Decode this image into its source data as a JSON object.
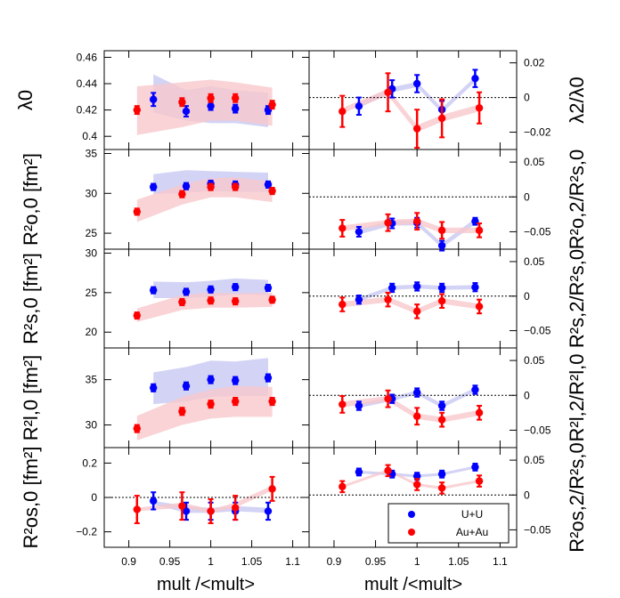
{
  "chart_data": {
    "type": "scatter",
    "x_label": "mult /<mult>",
    "xlim": [
      0.87,
      1.12
    ],
    "x_ticks": [
      "0.9",
      "0.95",
      "1",
      "1.05",
      "1.1"
    ],
    "x_tick_values": [
      0.9,
      0.95,
      1.0,
      1.05,
      1.1
    ],
    "legend": {
      "placement": "bottom-right",
      "entries": [
        "U+U",
        "Au+Au"
      ]
    },
    "colors": {
      "uu": "#0000ff",
      "auau": "#ff0000",
      "uu_band": "#c8c8f2",
      "auau_band": "#f8c8cc"
    },
    "series_x": {
      "U+U": [
        0.93,
        0.97,
        1.0,
        1.03,
        1.07
      ],
      "Au+Au": [
        0.91,
        0.965,
        1.0,
        1.03,
        1.075
      ]
    },
    "left_panels": [
      {
        "id": "lambda0",
        "ylabel": "λ0",
        "ylim": [
          0.39,
          0.465
        ],
        "y_ticks": [
          0.4,
          0.42,
          0.44,
          0.46
        ],
        "y_tick_labels": [
          "0.4",
          "0.42",
          "0.44",
          "0.46"
        ],
        "uu": [
          0.428,
          0.419,
          0.423,
          0.421,
          0.42
        ],
        "auau": [
          0.42,
          0.426,
          0.429,
          0.429,
          0.424
        ],
        "uu_band": [
          [
            0.93,
            0.418,
            0.447
          ],
          [
            0.97,
            0.412,
            0.435
          ],
          [
            1.0,
            0.41,
            0.438
          ],
          [
            1.03,
            0.41,
            0.435
          ],
          [
            1.07,
            0.407,
            0.433
          ]
        ],
        "auau_band": [
          [
            0.91,
            0.401,
            0.438
          ],
          [
            0.965,
            0.407,
            0.441
          ],
          [
            1.0,
            0.412,
            0.443
          ],
          [
            1.03,
            0.412,
            0.441
          ],
          [
            1.075,
            0.408,
            0.437
          ]
        ],
        "uu_err": [
          0.005,
          0.004,
          0.003,
          0.003,
          0.003
        ],
        "auau_err": [
          0.003,
          0.003,
          0.003,
          0.003,
          0.003
        ],
        "ref_line": null
      },
      {
        "id": "Ro",
        "ylabel": "R²o,0 [fm²]",
        "ylim": [
          23,
          35.5
        ],
        "y_ticks": [
          25,
          30,
          35
        ],
        "y_tick_labels": [
          "25",
          "30",
          "35"
        ],
        "uu": [
          30.8,
          30.9,
          31.2,
          31.1,
          31.1
        ],
        "auau": [
          27.7,
          29.9,
          30.8,
          30.8,
          30.3
        ],
        "uu_band": [
          [
            0.93,
            29.9,
            32.4
          ],
          [
            0.97,
            30.1,
            32.9
          ],
          [
            1.0,
            30.3,
            32.8
          ],
          [
            1.03,
            30.2,
            32.7
          ],
          [
            1.07,
            30.2,
            32.6
          ]
        ],
        "auau_band": [
          [
            0.91,
            26.4,
            29.2
          ],
          [
            0.965,
            28.6,
            31.1
          ],
          [
            1.0,
            29.5,
            31.9
          ],
          [
            1.03,
            29.5,
            32.0
          ],
          [
            1.075,
            28.9,
            31.5
          ]
        ],
        "uu_err": [
          0.4,
          0.4,
          0.4,
          0.4,
          0.4
        ],
        "auau_err": [
          0.4,
          0.4,
          0.4,
          0.4,
          0.4
        ],
        "ref_line": null
      },
      {
        "id": "Rs",
        "ylabel": "R²s,0 [fm²]",
        "ylim": [
          18,
          30.5
        ],
        "y_ticks": [
          20,
          25,
          30
        ],
        "y_tick_labels": [
          "20",
          "25",
          "30"
        ],
        "uu": [
          25.3,
          25.1,
          25.4,
          25.7,
          25.6
        ],
        "auau": [
          22.1,
          23.8,
          24.0,
          23.9,
          24.1
        ],
        "uu_band": [
          [
            0.93,
            24.3,
            26.4
          ],
          [
            0.97,
            24.3,
            26.3
          ],
          [
            1.0,
            24.5,
            26.5
          ],
          [
            1.03,
            24.8,
            26.8
          ],
          [
            1.07,
            24.7,
            26.6
          ]
        ],
        "auau_band": [
          [
            0.91,
            21.3,
            23.0
          ],
          [
            0.965,
            22.8,
            24.7
          ],
          [
            1.0,
            23.1,
            25.0
          ],
          [
            1.03,
            23.1,
            24.9
          ],
          [
            1.075,
            23.2,
            25.0
          ]
        ],
        "uu_err": [
          0.4,
          0.4,
          0.4,
          0.4,
          0.4
        ],
        "auau_err": [
          0.4,
          0.4,
          0.4,
          0.4,
          0.4
        ],
        "ref_line": null
      },
      {
        "id": "Rl",
        "ylabel": "R²l,0 [fm²]",
        "ylim": [
          27.5,
          38.5
        ],
        "y_ticks": [
          30,
          35
        ],
        "y_tick_labels": [
          "30",
          "35"
        ],
        "uu": [
          34.1,
          34.3,
          35.0,
          34.9,
          35.2
        ],
        "auau": [
          29.6,
          31.5,
          32.3,
          32.6,
          32.6
        ],
        "uu_band": [
          [
            0.93,
            32.3,
            35.8
          ],
          [
            0.97,
            32.6,
            36.4
          ],
          [
            1.0,
            33.1,
            37.1
          ],
          [
            1.03,
            33.2,
            37.0
          ],
          [
            1.07,
            33.2,
            37.4
          ]
        ],
        "auau_band": [
          [
            0.91,
            28.3,
            31.0
          ],
          [
            0.965,
            30.0,
            33.1
          ],
          [
            1.0,
            30.7,
            33.9
          ],
          [
            1.03,
            30.9,
            34.3
          ],
          [
            1.075,
            30.9,
            34.2
          ]
        ],
        "uu_err": [
          0.4,
          0.4,
          0.4,
          0.4,
          0.4
        ],
        "auau_err": [
          0.4,
          0.4,
          0.4,
          0.4,
          0.4
        ],
        "ref_line": null
      },
      {
        "id": "Ros",
        "ylabel": "R²os,0 [fm²]",
        "ylim": [
          -0.29,
          0.29
        ],
        "y_ticks": [
          -0.2,
          0,
          0.2
        ],
        "y_tick_labels": [
          "−0.2",
          "0",
          "0.2"
        ],
        "uu": [
          -0.02,
          -0.08,
          -0.08,
          -0.08,
          -0.08
        ],
        "auau": [
          -0.07,
          -0.05,
          -0.08,
          -0.06,
          0.05
        ],
        "uu_band": [
          [
            0.93,
            -0.04,
            -0.02
          ],
          [
            0.97,
            -0.09,
            -0.05
          ],
          [
            1.0,
            -0.09,
            -0.06
          ],
          [
            1.03,
            -0.08,
            -0.05
          ],
          [
            1.07,
            -0.09,
            -0.06
          ]
        ],
        "auau_band": [
          [
            0.91,
            -0.08,
            -0.06
          ],
          [
            0.965,
            -0.06,
            -0.03
          ],
          [
            1.0,
            -0.09,
            -0.07
          ],
          [
            1.03,
            -0.06,
            -0.03
          ],
          [
            1.075,
            0.04,
            0.07
          ]
        ],
        "uu_err": [
          0.05,
          0.05,
          0.05,
          0.05,
          0.05
        ],
        "auau_err": [
          0.08,
          0.08,
          0.07,
          0.07,
          0.07
        ],
        "ref_line": 0
      }
    ],
    "right_panels": [
      {
        "id": "lambda_ratio",
        "ylabel": "λ2/λ0",
        "ylim": [
          -0.03,
          0.027
        ],
        "y_ticks": [
          -0.02,
          0,
          0.02
        ],
        "y_tick_labels": [
          "−0.02",
          "0",
          "0.02"
        ],
        "uu": [
          -0.005,
          0.005,
          0.008,
          -0.007,
          0.011
        ],
        "auau": [
          -0.008,
          0.003,
          -0.018,
          -0.012,
          -0.006
        ],
        "uu_band": [
          [
            0.93,
            -0.006,
            -0.003
          ],
          [
            0.97,
            0.003,
            0.006
          ],
          [
            1.0,
            0.006,
            0.009
          ],
          [
            1.03,
            -0.009,
            -0.006
          ],
          [
            1.07,
            0.009,
            0.012
          ]
        ],
        "auau_band": [
          [
            0.91,
            -0.009,
            -0.006
          ],
          [
            0.965,
            0.001,
            0.005
          ],
          [
            1.0,
            -0.02,
            -0.016
          ],
          [
            1.03,
            -0.014,
            -0.01
          ],
          [
            1.075,
            -0.008,
            -0.004
          ]
        ],
        "uu_err": [
          0.005,
          0.005,
          0.005,
          0.005,
          0.005
        ],
        "auau_err": [
          0.009,
          0.011,
          0.011,
          0.011,
          0.009
        ],
        "ref_line": 0
      },
      {
        "id": "Ro_ratio",
        "ylabel": "R²o,2/R²s,0",
        "ylim": [
          -0.075,
          0.068
        ],
        "y_ticks": [
          -0.05,
          0,
          0.05
        ],
        "y_tick_labels": [
          "−0.05",
          "0",
          "0.05"
        ],
        "uu": [
          -0.05,
          -0.038,
          -0.037,
          -0.07,
          -0.035
        ],
        "auau": [
          -0.045,
          -0.037,
          -0.035,
          -0.048,
          -0.048
        ],
        "uu_band": [
          [
            0.93,
            -0.054,
            -0.046
          ],
          [
            0.97,
            -0.041,
            -0.034
          ],
          [
            1.0,
            -0.041,
            -0.034
          ],
          [
            1.03,
            -0.073,
            -0.066
          ],
          [
            1.07,
            -0.039,
            -0.031
          ]
        ],
        "auau_band": [
          [
            0.91,
            -0.049,
            -0.041
          ],
          [
            0.965,
            -0.041,
            -0.033
          ],
          [
            1.0,
            -0.039,
            -0.031
          ],
          [
            1.03,
            -0.052,
            -0.044
          ],
          [
            1.075,
            -0.052,
            -0.044
          ]
        ],
        "uu_err": [
          0.007,
          0.007,
          0.007,
          0.007,
          0.005
        ],
        "auau_err": [
          0.012,
          0.012,
          0.012,
          0.012,
          0.01
        ],
        "ref_line": 0
      },
      {
        "id": "Rs_ratio",
        "ylabel": "R²s,2/R²s,0",
        "ylim": [
          -0.075,
          0.068
        ],
        "y_ticks": [
          -0.05,
          0,
          0.05
        ],
        "y_tick_labels": [
          "−0.05",
          "0",
          "0.05"
        ],
        "uu": [
          -0.005,
          0.012,
          0.014,
          0.012,
          0.013
        ],
        "auau": [
          -0.012,
          -0.005,
          -0.022,
          -0.007,
          -0.015
        ],
        "uu_band": [
          [
            0.93,
            -0.008,
            -0.002
          ],
          [
            0.97,
            0.009,
            0.015
          ],
          [
            1.0,
            0.011,
            0.017
          ],
          [
            1.03,
            0.009,
            0.015
          ],
          [
            1.07,
            0.01,
            0.016
          ]
        ],
        "auau_band": [
          [
            0.91,
            -0.016,
            -0.008
          ],
          [
            0.965,
            -0.009,
            -0.001
          ],
          [
            1.0,
            -0.026,
            -0.018
          ],
          [
            1.03,
            -0.011,
            -0.003
          ],
          [
            1.075,
            -0.019,
            -0.011
          ]
        ],
        "uu_err": [
          0.006,
          0.006,
          0.006,
          0.006,
          0.006
        ],
        "auau_err": [
          0.01,
          0.01,
          0.01,
          0.01,
          0.01
        ],
        "ref_line": 0
      },
      {
        "id": "Rl_ratio",
        "ylabel": "R²l,2/R²l,0",
        "ylim": [
          -0.075,
          0.068
        ],
        "y_ticks": [
          -0.05,
          0,
          0.05
        ],
        "y_tick_labels": [
          "−0.05",
          "0",
          "0.05"
        ],
        "uu": [
          -0.015,
          -0.005,
          0.004,
          -0.015,
          0.008
        ],
        "auau": [
          -0.013,
          -0.005,
          -0.03,
          -0.035,
          -0.025
        ],
        "uu_band": [
          [
            0.93,
            -0.018,
            -0.012
          ],
          [
            0.97,
            -0.008,
            -0.002
          ],
          [
            1.0,
            0.001,
            0.007
          ],
          [
            1.03,
            -0.018,
            -0.012
          ],
          [
            1.07,
            0.005,
            0.011
          ]
        ],
        "auau_band": [
          [
            0.91,
            -0.017,
            -0.009
          ],
          [
            0.965,
            -0.009,
            -0.001
          ],
          [
            1.0,
            -0.034,
            -0.026
          ],
          [
            1.03,
            -0.039,
            -0.031
          ],
          [
            1.075,
            -0.029,
            -0.021
          ]
        ],
        "uu_err": [
          0.006,
          0.006,
          0.006,
          0.006,
          0.006
        ],
        "auau_err": [
          0.012,
          0.012,
          0.012,
          0.01,
          0.01
        ],
        "ref_line": 0
      },
      {
        "id": "Ros_ratio",
        "ylabel": "R²os,2/R²s,0",
        "ylim": [
          -0.075,
          0.068
        ],
        "y_ticks": [
          -0.05,
          0,
          0.05
        ],
        "y_tick_labels": [
          "−0.05",
          "0",
          "0.05"
        ],
        "uu": [
          0.033,
          0.03,
          0.027,
          0.03,
          0.04
        ],
        "auau": [
          0.012,
          0.035,
          0.015,
          0.01,
          0.02
        ],
        "uu_band": [
          [
            0.93,
            0.031,
            0.035
          ],
          [
            0.97,
            0.028,
            0.032
          ],
          [
            1.0,
            0.025,
            0.029
          ],
          [
            1.03,
            0.028,
            0.032
          ],
          [
            1.07,
            0.038,
            0.042
          ]
        ],
        "auau_band": [
          [
            0.91,
            0.01,
            0.014
          ],
          [
            0.965,
            0.033,
            0.037
          ],
          [
            1.0,
            0.013,
            0.017
          ],
          [
            1.03,
            0.008,
            0.012
          ],
          [
            1.075,
            0.018,
            0.022
          ]
        ],
        "uu_err": [
          0.005,
          0.005,
          0.005,
          0.005,
          0.005
        ],
        "auau_err": [
          0.008,
          0.008,
          0.008,
          0.008,
          0.008
        ],
        "ref_line": 0
      }
    ]
  }
}
